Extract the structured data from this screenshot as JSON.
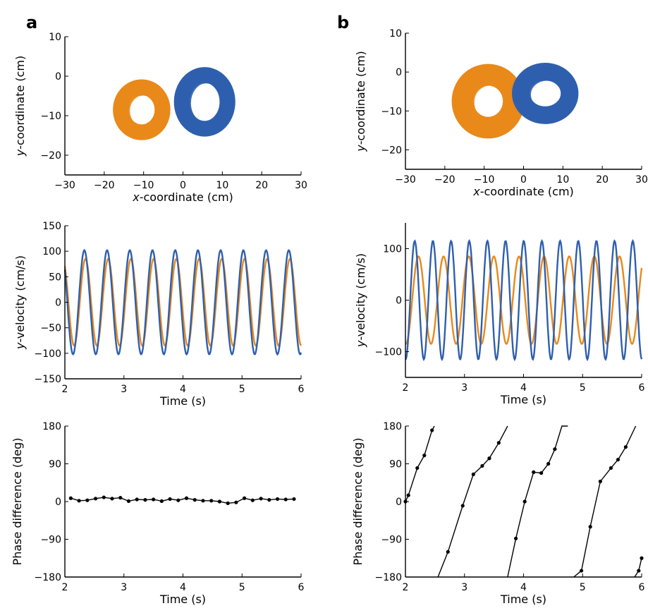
{
  "panel_labels": {
    "a": "a",
    "b": "b"
  },
  "colors": {
    "orange": "#E8891A",
    "blue": "#2F5FAE",
    "black": "#000000"
  },
  "chart_data": [
    {
      "id": "a1",
      "type": "scatter",
      "xlabel": {
        "italic": "x",
        "rest": "-coordinate (cm)"
      },
      "ylabel": {
        "italic": "y",
        "rest": "-coordinate (cm)"
      },
      "xlim": [
        -30,
        30
      ],
      "ylim": [
        -25,
        10
      ],
      "xticks": [
        "−30",
        "−20",
        "−10",
        "0",
        "10",
        "20",
        "30"
      ],
      "yticks": [
        "−20",
        "−10",
        "0",
        "10"
      ],
      "series": [
        {
          "color": "orange",
          "center": [
            -10.5,
            -8.5
          ],
          "rx": 5.3,
          "ry": 5.7,
          "width_cm": 4.0
        },
        {
          "color": "blue",
          "center": [
            5.5,
            -6.5
          ],
          "rx": 5.8,
          "ry": 6.8,
          "width_cm": 4.0
        }
      ]
    },
    {
      "id": "a2",
      "type": "line",
      "xlabel": "Time (s)",
      "ylabel": {
        "italic": "y",
        "rest": "-velocity (cm/s)"
      },
      "xlim": [
        2,
        6
      ],
      "ylim": [
        -150,
        150
      ],
      "xticks": [
        "2",
        "3",
        "4",
        "5",
        "6"
      ],
      "yticks": [
        "−150",
        "−100",
        "−50",
        "0",
        "50",
        "100",
        "150"
      ],
      "series": [
        {
          "color": "orange",
          "amplitude": 85,
          "freq_hz": 2.6,
          "phase_rad": 0.9
        },
        {
          "color": "blue",
          "amplitude": 102,
          "freq_hz": 2.6,
          "phase_rad": 1.2
        }
      ]
    },
    {
      "id": "a3",
      "type": "line",
      "xlabel": "Time (s)",
      "ylabel": "Phase difference (deg)",
      "xlim": [
        2,
        6
      ],
      "ylim": [
        -180,
        180
      ],
      "xticks": [
        "2",
        "3",
        "4",
        "5",
        "6"
      ],
      "yticks": [
        "−180",
        "−90",
        "0",
        "90",
        "180"
      ],
      "x": [
        2.1,
        2.24,
        2.38,
        2.52,
        2.66,
        2.8,
        2.94,
        3.08,
        3.22,
        3.36,
        3.5,
        3.64,
        3.78,
        3.92,
        4.06,
        4.2,
        4.34,
        4.48,
        4.62,
        4.76,
        4.9,
        5.04,
        5.18,
        5.32,
        5.46,
        5.6,
        5.74,
        5.88
      ],
      "y": [
        8,
        2,
        3,
        7,
        10,
        7,
        9,
        1,
        5,
        4,
        5,
        1,
        6,
        3,
        8,
        4,
        2,
        2,
        0,
        -4,
        -2,
        8,
        3,
        7,
        4,
        6,
        5,
        6
      ]
    },
    {
      "id": "b1",
      "type": "scatter",
      "xlabel": {
        "italic": "x",
        "rest": "-coordinate (cm)"
      },
      "ylabel": {
        "italic": "y",
        "rest": "-coordinate (cm)"
      },
      "xlim": [
        -30,
        30
      ],
      "ylim": [
        -25,
        10
      ],
      "xticks": [
        "−30",
        "−20",
        "−10",
        "0",
        "10",
        "20",
        "30"
      ],
      "yticks": [
        "−20",
        "−10",
        "0",
        "10"
      ],
      "series": [
        {
          "color": "orange",
          "center": [
            -9.0,
            -7.5
          ],
          "rx": 6.5,
          "ry": 6.8,
          "width_cm": 5.5
        },
        {
          "color": "blue",
          "center": [
            5.5,
            -5.5
          ],
          "rx": 6.2,
          "ry": 5.6,
          "width_cm": 4.5
        }
      ]
    },
    {
      "id": "b2",
      "type": "line",
      "xlabel": "Time (s)",
      "ylabel": {
        "italic": "y",
        "rest": "-velocity (cm/s)"
      },
      "xlim": [
        2,
        6
      ],
      "ylim": [
        -150,
        150
      ],
      "xticks": [
        "2",
        "3",
        "4",
        "5",
        "6"
      ],
      "yticks": [
        "−100",
        "0",
        "100"
      ],
      "series": [
        {
          "color": "orange",
          "amplitude": 85,
          "freq_hz": 2.35,
          "phase_rad": 0.2
        },
        {
          "color": "blue",
          "amplitude": 115,
          "freq_hz": 3.25,
          "phase_rad": 1.5
        }
      ]
    },
    {
      "id": "b3",
      "type": "line",
      "xlabel": "Time (s)",
      "ylabel": "Phase difference (deg)",
      "xlim": [
        2,
        6
      ],
      "ylim": [
        -180,
        180
      ],
      "xticks": [
        "2",
        "3",
        "4",
        "5",
        "6"
      ],
      "yticks": [
        "−180",
        "−90",
        "0",
        "90",
        "180"
      ],
      "segments": [
        {
          "x": [
            2.0,
            2.05,
            2.2,
            2.32,
            2.45,
            2.49
          ],
          "y": [
            0,
            15,
            80,
            110,
            170,
            180
          ]
        },
        {
          "x": [
            2.55,
            2.72,
            2.97,
            3.15,
            3.3,
            3.42,
            3.58,
            3.73
          ],
          "y": [
            -180,
            -120,
            -10,
            65,
            85,
            103,
            140,
            180
          ]
        },
        {
          "x": [
            3.73,
            3.87,
            4.02,
            4.17,
            4.3,
            4.42,
            4.53,
            4.65,
            4.75
          ],
          "y": [
            -180,
            -88,
            0,
            70,
            68,
            90,
            125,
            180,
            180
          ]
        },
        {
          "x": [
            4.85,
            4.98,
            5.13,
            5.3,
            5.48,
            5.6,
            5.73,
            5.9
          ],
          "y": [
            -180,
            -165,
            -60,
            48,
            80,
            100,
            130,
            180
          ]
        },
        {
          "x": [
            5.88,
            5.95,
            6.0
          ],
          "y": [
            -180,
            -165,
            -135
          ]
        }
      ]
    }
  ]
}
